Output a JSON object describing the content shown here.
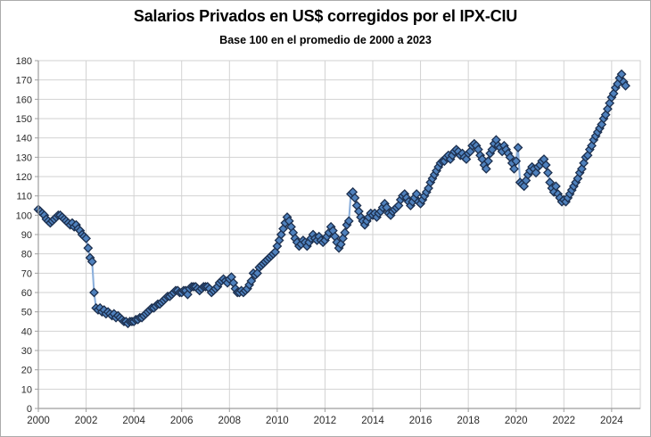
{
  "chart_data": {
    "type": "line",
    "title": "Salarios Privados en US$ corregidos por el IPX-CIU",
    "subtitle": "Base 100 en el promedio de 2000 a 2023",
    "frequency": "monthly",
    "x_start": "2000-01",
    "x_end": "2024-08",
    "xticks": [
      2000,
      2002,
      2004,
      2006,
      2008,
      2010,
      2012,
      2014,
      2016,
      2018,
      2020,
      2022,
      2024
    ],
    "xlim": [
      2000,
      2025.2
    ],
    "ylim": [
      0,
      180
    ],
    "ytick_step": 10,
    "grid": true,
    "legend": "none",
    "marker": "diamond",
    "colors": {
      "line": "#8CB0DC",
      "marker_fill": "#4F81BD",
      "marker_border": "#1C2F4E",
      "gridline": "#D2D2D2",
      "axis": "#9E9E9E",
      "figure_border": "#ABABAB",
      "background": "#FFFFFF"
    },
    "series": [
      {
        "values_by_year": {
          "2000": [
            103,
            102,
            101,
            100,
            98,
            97,
            96,
            97,
            98,
            99,
            100,
            100
          ],
          "2001": [
            99,
            98,
            97,
            96,
            95,
            96,
            94,
            95,
            93,
            92,
            90,
            89
          ],
          "2002": [
            88,
            83,
            78,
            76,
            60,
            52,
            51,
            52,
            50,
            51,
            49,
            50
          ],
          "2003": [
            49,
            48,
            49,
            47,
            48,
            47,
            46,
            45,
            45,
            44,
            45,
            45
          ],
          "2004": [
            45,
            46,
            46,
            47,
            47,
            48,
            49,
            50,
            51,
            52,
            52,
            53
          ],
          "2005": [
            54,
            54,
            55,
            56,
            57,
            58,
            58,
            59,
            60,
            61,
            61,
            60
          ],
          "2006": [
            60,
            61,
            61,
            59,
            62,
            63,
            63,
            63,
            62,
            61,
            62,
            63
          ],
          "2007": [
            63,
            63,
            62,
            60,
            61,
            62,
            63,
            65,
            66,
            67,
            66,
            65
          ],
          "2008": [
            67,
            68,
            65,
            62,
            60,
            60,
            61,
            60,
            61,
            62,
            64,
            66
          ],
          "2009": [
            70,
            69,
            70,
            73,
            74,
            75,
            76,
            77,
            78,
            79,
            80,
            81
          ],
          "2010": [
            84,
            87,
            90,
            93,
            96,
            99,
            97,
            94,
            91,
            88,
            86,
            84
          ],
          "2011": [
            85,
            87,
            86,
            84,
            86,
            88,
            90,
            88,
            87,
            89,
            87,
            86
          ],
          "2012": [
            87,
            89,
            91,
            94,
            92,
            89,
            86,
            83,
            85,
            88,
            91,
            95
          ],
          "2013": [
            97,
            111,
            112,
            109,
            105,
            102,
            99,
            97,
            95,
            97,
            99,
            101
          ],
          "2014": [
            100,
            101,
            99,
            101,
            102,
            104,
            106,
            104,
            101,
            100,
            102,
            103
          ],
          "2015": [
            104,
            105,
            108,
            110,
            111,
            109,
            107,
            105,
            107,
            109,
            111,
            107
          ],
          "2016": [
            106,
            108,
            110,
            112,
            114,
            117,
            119,
            121,
            123,
            125,
            127,
            128
          ],
          "2017": [
            128,
            130,
            131,
            129,
            131,
            133,
            134,
            133,
            131,
            132,
            130,
            129
          ],
          "2018": [
            132,
            133,
            136,
            137,
            136,
            134,
            131,
            129,
            126,
            124,
            128,
            132
          ],
          "2019": [
            134,
            137,
            139,
            136,
            135,
            133,
            136,
            134,
            132,
            130,
            127,
            124
          ],
          "2020": [
            128,
            135,
            117,
            116,
            115,
            118,
            121,
            123,
            125,
            124,
            122,
            125
          ],
          "2021": [
            126,
            128,
            129,
            126,
            122,
            117,
            114,
            112,
            115,
            111,
            109,
            107
          ],
          "2022": [
            108,
            107,
            109,
            111,
            113,
            115,
            117,
            119,
            122,
            124,
            127,
            130
          ],
          "2023": [
            131,
            134,
            136,
            139,
            141,
            143,
            145,
            147,
            150,
            152,
            155,
            158
          ],
          "2024": [
            161,
            163,
            166,
            168,
            171,
            173,
            169,
            167
          ]
        }
      }
    ]
  }
}
